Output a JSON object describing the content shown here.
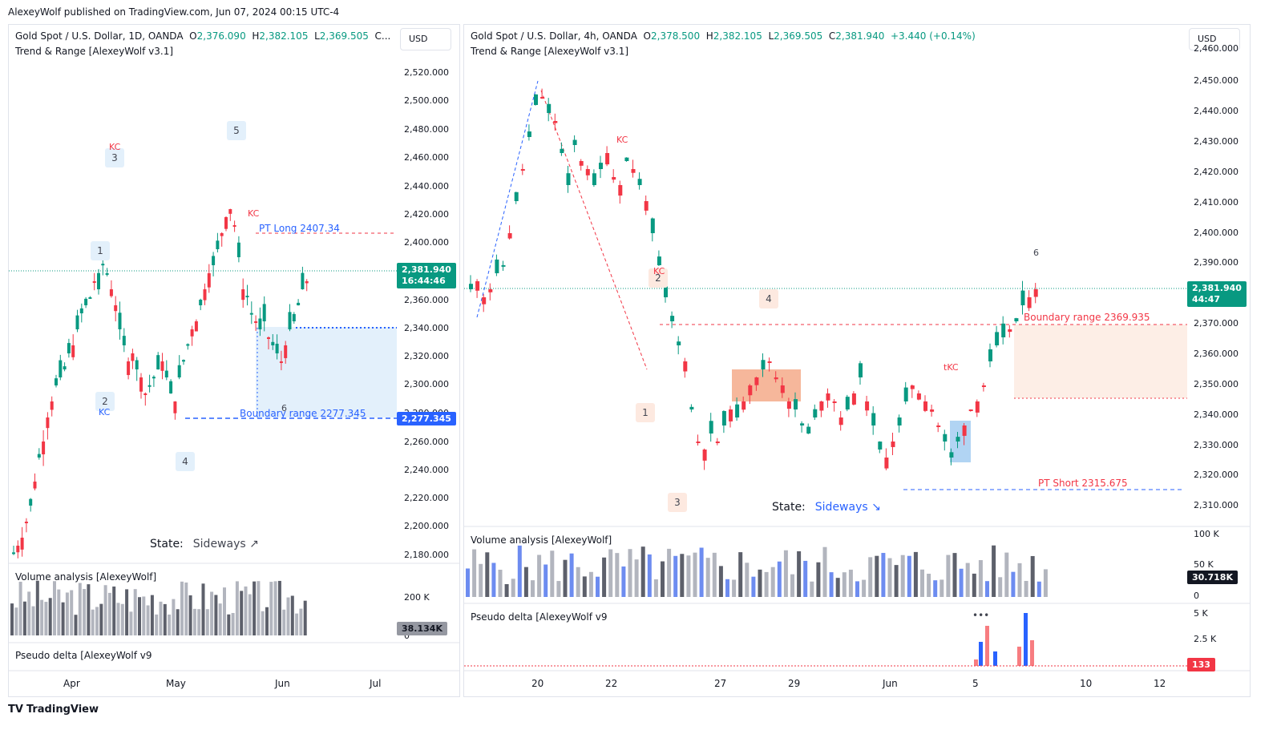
{
  "header": {
    "text": "AlexeyWolf published on TradingView.com, Jun 07, 2024 00:15 UTC-4"
  },
  "left": {
    "symbol": "Gold Spot / U.S. Dollar, 1D, OANDA",
    "ohlc": {
      "o_label": "O",
      "o": "2,376.090",
      "h_label": "H",
      "h": "2,382.105",
      "l_label": "L",
      "l": "2,369.505",
      "c_label": "C..."
    },
    "indicator": "Trend & Range [AlexeyWolf v3.1]",
    "currency": "USD",
    "price_labels": [
      "2,520.000",
      "2,500.000",
      "2,480.000",
      "2,460.000",
      "2,440.000",
      "2,420.000",
      "2,400.000",
      "2,360.000",
      "2,340.000",
      "2,320.000",
      "2,300.000",
      "2,280.000",
      "2,260.000",
      "2,240.000",
      "2,220.000",
      "2,200.000",
      "2,180.000"
    ],
    "last_price": "2,381.940",
    "countdown": "16:44:46",
    "boundary_tag": "2,277.345",
    "pt_long": "PT Long 2407.34",
    "boundary_range": "Boundary range 2277.345",
    "state_label": "State:",
    "state_value": "Sideways ↗",
    "markers": {
      "m1": "1",
      "m2": "2",
      "m3": "3",
      "m4": "4",
      "m5": "5",
      "m6": "6",
      "kc1": "KC",
      "kc2": "KC",
      "kc3": "KC"
    },
    "volume_title": "Volume analysis [AlexeyWolf]",
    "volume_axis": "200 K",
    "volume_zero": "0",
    "volume_last": "38.134K",
    "delta_title": "Pseudo delta [AlexeyWolf v9",
    "x_labels": [
      "Apr",
      "May",
      "Jun",
      "Jul"
    ]
  },
  "right": {
    "symbol": "Gold Spot / U.S. Dollar, 4h, OANDA",
    "ohlc": {
      "o_label": "O",
      "o": "2,378.500",
      "h_label": "H",
      "h": "2,382.105",
      "l_label": "L",
      "l": "2,369.505",
      "c_label": "C",
      "c": "2,381.940",
      "chg": "+3.440 (+0.14%)"
    },
    "indicator": "Trend & Range [AlexeyWolf v3.1]",
    "currency": "USD",
    "price_labels": [
      "2,460.000",
      "2,450.000",
      "2,440.000",
      "2,430.000",
      "2,420.000",
      "2,410.000",
      "2,400.000",
      "2,390.000",
      "2,370.000",
      "2,360.000",
      "2,350.000",
      "2,340.000",
      "2,330.000",
      "2,320.000",
      "2,310.000"
    ],
    "last_price": "2,381.940",
    "countdown": "44:47",
    "boundary_range": "Boundary range 2369.935",
    "pt_short": "PT Short 2315.675",
    "state_label": "State:",
    "state_value": "Sideways ↘",
    "markers": {
      "m1": "1",
      "m2": "2",
      "m3": "3",
      "m4": "4",
      "m6": "6",
      "kc1": "KC",
      "kc2": "KC",
      "tkc": "tKC"
    },
    "volume_title": "Volume analysis [AlexeyWolf]",
    "volume_axis_top": "100 K",
    "volume_axis_mid": "50 K",
    "volume_zero": "0",
    "volume_last": "30.718K",
    "delta_title": "Pseudo delta [AlexeyWolf v9",
    "delta_axis_top": "5 K",
    "delta_axis_mid": "2.5 K",
    "delta_last": "133",
    "delta_dots": "•••",
    "x_labels": [
      "20",
      "22",
      "27",
      "29",
      "Jun",
      "5",
      "10",
      "12"
    ]
  },
  "brand": {
    "logo": "TV",
    "name": "TradingView"
  },
  "colors": {
    "up": "#089981",
    "down": "#f23645",
    "blue": "#2962ff",
    "boundary_fill": "#e3f0fb",
    "zone_fill": "#fde9e0"
  }
}
